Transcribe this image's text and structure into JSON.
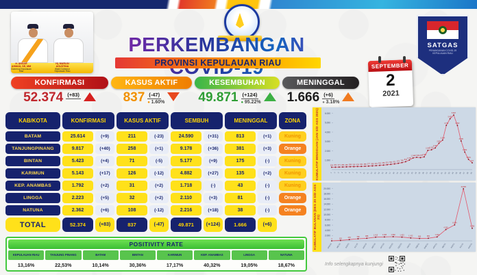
{
  "header": {
    "title": "PERKEMBANGAN COVID-19",
    "subtitle": "PROVINSI KEPULAUAN RIAU",
    "officials": {
      "left_name": "H. ANSAR AHMAD, SE, MM",
      "left_role": "Gubernur Kepulauan Riau",
      "right_name": "Hj. MARLIN AGUSTINA",
      "right_role": "Wakil Gubernur Kepulauan Riau"
    },
    "badge": {
      "label": "SATGAS",
      "sub": "PENANGANAN COVID-19 KEPULAUAN RIAU"
    },
    "calendar": {
      "month": "SEPTEMBER",
      "day": "2",
      "year": "2021"
    }
  },
  "stat_cards": [
    {
      "label": "KONFIRMASI",
      "value": "52.374",
      "delta": "(+83)",
      "percent": null,
      "trend": "up",
      "accent": "#c0272d",
      "pill": [
        "#ef4123",
        "#b01117"
      ],
      "dot": "#c0272d",
      "tri": "#d6201f"
    },
    {
      "label": "KASUS AKTIF",
      "value": "837",
      "delta": "(-47)",
      "percent": "1.60%",
      "trend": "down",
      "accent": "#f29100",
      "pill": [
        "#ffb612",
        "#ef7d00"
      ],
      "dot": "#f29100",
      "tri": "#e8491f"
    },
    {
      "label": "KESEMBUHAN",
      "value": "49.871",
      "delta": "(+124)",
      "percent": "95.22%",
      "trend": "up",
      "accent": "#2f9e35",
      "pill": [
        "#39b54a",
        "#d7df23"
      ],
      "dot": "#2f9e35",
      "tri": "#3cb043"
    },
    {
      "label": "MENINGGAL",
      "value": "1.666",
      "delta": "(+6)",
      "percent": "3.18%",
      "trend": "up",
      "accent": "#1d1d1d",
      "pill": [
        "#58595b",
        "#231f20"
      ],
      "dot": "#7a7a7a",
      "tri": "#f07a1f"
    }
  ],
  "table": {
    "headers": [
      "KAB/KOTA",
      "KONFIRMASI",
      "KASUS AKTIF",
      "SEMBUH",
      "MENINGGAL",
      "ZONA"
    ],
    "rows": [
      {
        "name": "BATAM",
        "konfirmasi": "25.614",
        "konfirmasi_delta": "(+9)",
        "aktif": "211",
        "aktif_delta": "(-23)",
        "sembuh": "24.590",
        "sembuh_delta": "(+31)",
        "meninggal": "813",
        "meninggal_delta": "(+1)",
        "zona": "Kuning"
      },
      {
        "name": "TANJUNGPINANG",
        "konfirmasi": "9.817",
        "konfirmasi_delta": "(+40)",
        "aktif": "258",
        "aktif_delta": "(+1)",
        "sembuh": "9.178",
        "sembuh_delta": "(+36)",
        "meninggal": "381",
        "meninggal_delta": "(+3)",
        "zona": "Orange"
      },
      {
        "name": "BINTAN",
        "konfirmasi": "5.423",
        "konfirmasi_delta": "(+4)",
        "aktif": "71",
        "aktif_delta": "(-5)",
        "sembuh": "5.177",
        "sembuh_delta": "(+9)",
        "meninggal": "175",
        "meninggal_delta": "(-)",
        "zona": "Kuning"
      },
      {
        "name": "KARIMUN",
        "konfirmasi": "5.143",
        "konfirmasi_delta": "(+17)",
        "aktif": "126",
        "aktif_delta": "(-12)",
        "sembuh": "4.882",
        "sembuh_delta": "(+27)",
        "meninggal": "135",
        "meninggal_delta": "(+2)",
        "zona": "Kuning"
      },
      {
        "name": "KEP. ANAMBAS",
        "konfirmasi": "1.792",
        "konfirmasi_delta": "(+2)",
        "aktif": "31",
        "aktif_delta": "(+2)",
        "sembuh": "1.718",
        "sembuh_delta": "(-)",
        "meninggal": "43",
        "meninggal_delta": "(-)",
        "zona": "Kuning"
      },
      {
        "name": "LINGGA",
        "konfirmasi": "2.223",
        "konfirmasi_delta": "(+5)",
        "aktif": "32",
        "aktif_delta": "(+2)",
        "sembuh": "2.110",
        "sembuh_delta": "(+3)",
        "meninggal": "81",
        "meninggal_delta": "(-)",
        "zona": "Orange"
      },
      {
        "name": "NATUNA",
        "konfirmasi": "2.362",
        "konfirmasi_delta": "(+6)",
        "aktif": "108",
        "aktif_delta": "(-12)",
        "sembuh": "2.216",
        "sembuh_delta": "(+18)",
        "meninggal": "38",
        "meninggal_delta": "(-)",
        "zona": "Orange"
      }
    ],
    "total": {
      "name": "TOTAL",
      "konfirmasi": "52.374",
      "konfirmasi_delta": "(+83)",
      "aktif": "837",
      "aktif_delta": "(-47)",
      "sembuh": "49.871",
      "sembuh_delta": "(+124)",
      "meninggal": "1.666",
      "meninggal_delta": "(+6)"
    }
  },
  "positivity": {
    "title": "POSITIVITY RATE",
    "items": [
      {
        "region": "KEPULAUAN RIAU",
        "value": "13,16%"
      },
      {
        "region": "TANJUNG PINANG",
        "value": "22,53%"
      },
      {
        "region": "BATAM",
        "value": "10,14%"
      },
      {
        "region": "BINTAN",
        "value": "30,36%"
      },
      {
        "region": "KARIMUN",
        "value": "17,17%"
      },
      {
        "region": "KEP. ANAMBAS",
        "value": "40,32%"
      },
      {
        "region": "LINGGA",
        "value": "19,05%"
      },
      {
        "region": "NATUNA",
        "value": "18,67%"
      }
    ]
  },
  "chart_data": [
    {
      "type": "line",
      "title": "KUMULATIF MINGGUAN (JAN S/D AGS 2021)",
      "x_labels": [
        "1",
        "2",
        "3",
        "4",
        "5",
        "6",
        "7",
        "8",
        "9",
        "10",
        "11",
        "12",
        "13",
        "14",
        "15",
        "16",
        "17",
        "18",
        "19",
        "20",
        "21",
        "22",
        "23",
        "24",
        "25",
        "26",
        "27",
        "28",
        "29",
        "30",
        "31",
        "32",
        "33",
        "34",
        "35",
        "36",
        "37",
        "38",
        "39"
      ],
      "values": [
        254,
        262,
        271,
        283,
        295,
        308,
        316,
        329,
        341,
        358,
        377,
        398,
        424,
        452,
        483,
        521,
        562,
        611,
        672,
        748,
        842,
        1021,
        1244,
        1311,
        1279,
        1356,
        2044,
        2118,
        2307,
        2803,
        3144,
        4711,
        5411,
        5807,
        4702,
        3045,
        1862,
        1091,
        727
      ],
      "ylim": [
        0,
        6000
      ],
      "ytick": 1000,
      "xlabel": "",
      "ylabel": "",
      "grid": false,
      "legend": "none",
      "line_color": "#e2566a",
      "marker_color": "#8b1a24",
      "label_color": "#c0272d",
      "bg": "#cdd9e6",
      "note": "weekly cumulative cases, x tick labels rotated and illegible in source; values estimated from plot"
    },
    {
      "type": "line",
      "title": "KUMULATIF BULANAN (DES 20 S/D AGS 21)",
      "x_labels": [
        "APR'20",
        "MEI'20",
        "JUN'20",
        "JUL'20",
        "AGS'20",
        "SEP'20",
        "OKT'20",
        "NOV'20",
        "DES'20",
        "JAN'21",
        "FEB'21",
        "MAR'21",
        "APR'21",
        "MEI'21",
        "JUN'21",
        "JUL'21",
        "AGS'21"
      ],
      "values": [
        4,
        152,
        478,
        798,
        988,
        1413,
        1498,
        1582,
        1423,
        1102,
        905,
        982,
        1491,
        4302,
        6094,
        19883,
        4796
      ],
      "ylim": [
        0,
        20000
      ],
      "ytick": 2000,
      "xlabel": "",
      "ylabel": "",
      "grid": false,
      "legend": "none",
      "line_color": "#e2566a",
      "marker_color": "#8b1a24",
      "label_color": "#c0272d",
      "bg": "#cdd9e6",
      "note": "monthly case totals with spike near end; values estimated from plot"
    }
  ],
  "footer": {
    "info_text": "Info selengkapnya kunjungi"
  },
  "colors": {
    "navy": "#16226d",
    "yellow": "#ffd400",
    "cell_yellow": "#ffe11a",
    "green_bar": "#43c93e",
    "zona_kuning": "#ffcf1f",
    "zona_orange": "#f58220",
    "chart_bg": "#cdd9e6",
    "calendar_red": "#c9151b"
  }
}
